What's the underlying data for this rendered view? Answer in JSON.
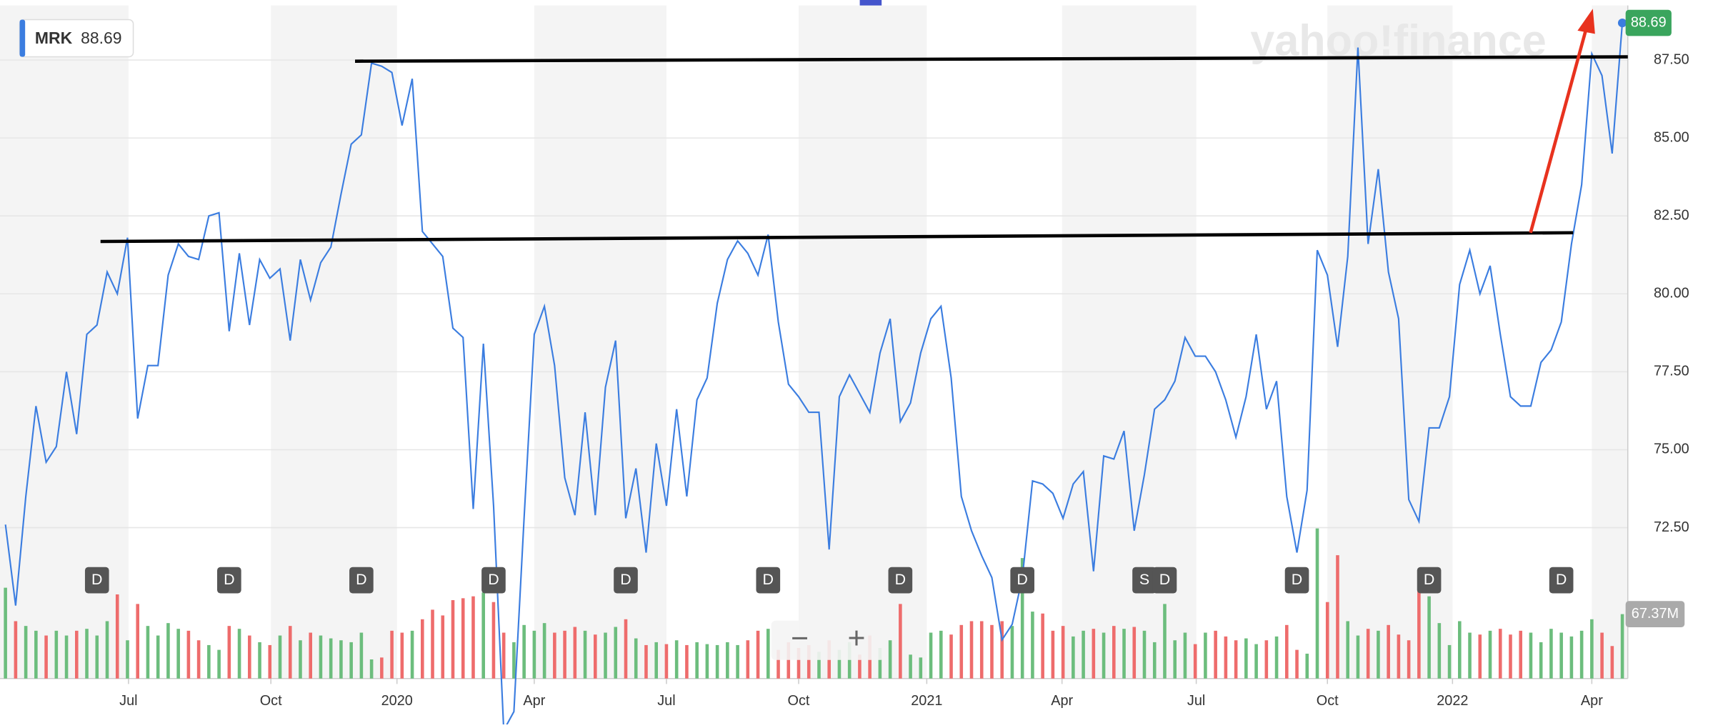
{
  "chart_data": {
    "type": "line",
    "ticker": "MRK",
    "watermark": "yahoo!finance",
    "series": [
      {
        "color": "#3b7de0",
        "values": [
          72.6,
          70.0,
          73.5,
          76.4,
          74.6,
          75.1,
          77.5,
          75.5,
          78.7,
          79.0,
          80.7,
          80.0,
          81.8,
          76.0,
          77.7,
          77.7,
          80.6,
          81.6,
          81.2,
          81.1,
          82.5,
          82.6,
          78.8,
          81.3,
          79.0,
          81.1,
          80.5,
          80.8,
          78.5,
          81.1,
          79.8,
          81.0,
          81.5,
          83.2,
          84.8,
          85.1,
          87.4,
          87.3,
          87.1,
          85.4,
          86.9,
          82.0,
          81.6,
          81.2,
          78.9,
          78.6,
          73.1,
          78.4,
          73.2,
          66.0,
          66.6,
          72.8,
          78.7,
          79.6,
          77.7,
          74.1,
          72.9,
          76.2,
          72.9,
          77.0,
          78.5,
          72.8,
          74.4,
          71.7,
          75.2,
          73.2,
          76.3,
          73.5,
          76.6,
          77.3,
          79.7,
          81.1,
          81.7,
          81.3,
          80.6,
          81.9,
          79.1,
          77.1,
          76.7,
          76.2,
          76.2,
          71.8,
          76.7,
          77.4,
          76.8,
          76.2,
          78.1,
          79.2,
          75.9,
          76.5,
          78.1,
          79.2,
          79.6,
          77.3,
          73.5,
          72.4,
          71.6,
          70.9,
          68.9,
          69.4,
          70.9,
          74.0,
          73.9,
          73.6,
          72.8,
          73.9,
          74.3,
          71.1,
          74.8,
          74.7,
          75.6,
          72.4,
          74.2,
          76.3,
          76.6,
          77.2,
          78.6,
          78.0,
          78.0,
          77.5,
          76.6,
          75.4,
          76.7,
          78.7,
          76.3,
          77.2,
          73.5,
          71.7,
          73.7,
          81.4,
          80.6,
          78.3,
          81.2,
          87.9,
          81.6,
          84.0,
          80.7,
          79.2,
          73.4,
          72.7,
          75.7,
          75.7,
          76.7,
          80.3,
          81.4,
          80.0,
          80.9,
          78.7,
          76.7,
          76.4,
          76.4,
          77.8,
          78.2,
          79.1,
          81.6,
          83.5,
          87.7,
          87.0,
          84.5,
          88.69
        ]
      }
    ],
    "volume": {
      "up_color": "#6cbd7d",
      "down_color": "#ee6c6c",
      "ylim": [
        0,
        160
      ],
      "last_label": "67.37M",
      "values": [
        95,
        60,
        55,
        50,
        45,
        50,
        45,
        50,
        52,
        45,
        60,
        88,
        40,
        78,
        55,
        45,
        58,
        52,
        50,
        40,
        35,
        30,
        55,
        52,
        45,
        38,
        35,
        45,
        55,
        40,
        48,
        45,
        42,
        40,
        38,
        48,
        20,
        22,
        50,
        48,
        50,
        62,
        72,
        66,
        82,
        84,
        86,
        90,
        80,
        48,
        38,
        56,
        50,
        58,
        48,
        50,
        54,
        50,
        46,
        48,
        54,
        62,
        42,
        35,
        38,
        36,
        40,
        35,
        38,
        36,
        35,
        38,
        35,
        40,
        50,
        52,
        30,
        38,
        32,
        35,
        28,
        40,
        30,
        38,
        25,
        45,
        32,
        40,
        78,
        25,
        22,
        48,
        50,
        46,
        56,
        60,
        60,
        56,
        60,
        55,
        126,
        70,
        68,
        50,
        55,
        44,
        50,
        52,
        48,
        55,
        52,
        54,
        50,
        38,
        78,
        40,
        48,
        36,
        48,
        50,
        44,
        40,
        42,
        36,
        40,
        44,
        56,
        30,
        26,
        157,
        80,
        129,
        60,
        45,
        52,
        50,
        56,
        46,
        40,
        114,
        86,
        58,
        35,
        60,
        48,
        46,
        50,
        52,
        46,
        50,
        48,
        38,
        52,
        48,
        44,
        50,
        62,
        48,
        34,
        67.37
      ]
    },
    "xlim": [
      0,
      159
    ],
    "ylim": [
      67.66,
      89.25
    ],
    "yticks": [
      {
        "value": 72.5,
        "label": "72.50"
      },
      {
        "value": 75,
        "label": "75.00"
      },
      {
        "value": 77.5,
        "label": "77.50"
      },
      {
        "value": 80,
        "label": "80.00"
      },
      {
        "value": 82.5,
        "label": "82.50"
      },
      {
        "value": 85,
        "label": "85.00"
      },
      {
        "value": 87.5,
        "label": "87.50"
      }
    ],
    "xticks": [
      {
        "value": 12.1,
        "label": "Jul"
      },
      {
        "value": 26.1,
        "label": "Oct"
      },
      {
        "value": 38.5,
        "label": "2020"
      },
      {
        "value": 52,
        "label": "Apr"
      },
      {
        "value": 65,
        "label": "Jul"
      },
      {
        "value": 78,
        "label": "Oct"
      },
      {
        "value": 90.6,
        "label": "2021"
      },
      {
        "value": 103.9,
        "label": "Apr"
      },
      {
        "value": 117.1,
        "label": "Jul"
      },
      {
        "value": 130,
        "label": "Oct"
      },
      {
        "value": 142.3,
        "label": "2022"
      },
      {
        "value": 156,
        "label": "Apr"
      }
    ],
    "events": [
      {
        "label": "D",
        "x": 9
      },
      {
        "label": "D",
        "x": 22
      },
      {
        "label": "D",
        "x": 35
      },
      {
        "label": "D",
        "x": 48
      },
      {
        "label": "D",
        "x": 61
      },
      {
        "label": "D",
        "x": 75
      },
      {
        "label": "D",
        "x": 88
      },
      {
        "label": "D",
        "x": 100
      },
      {
        "label": "S",
        "x": 112
      },
      {
        "label": "D",
        "x": 114
      },
      {
        "label": "D",
        "x": 127
      },
      {
        "label": "D",
        "x": 140
      },
      {
        "label": "D",
        "x": 153
      }
    ],
    "zoom": {
      "out": "−",
      "in": "+"
    },
    "grid": true
  }
}
